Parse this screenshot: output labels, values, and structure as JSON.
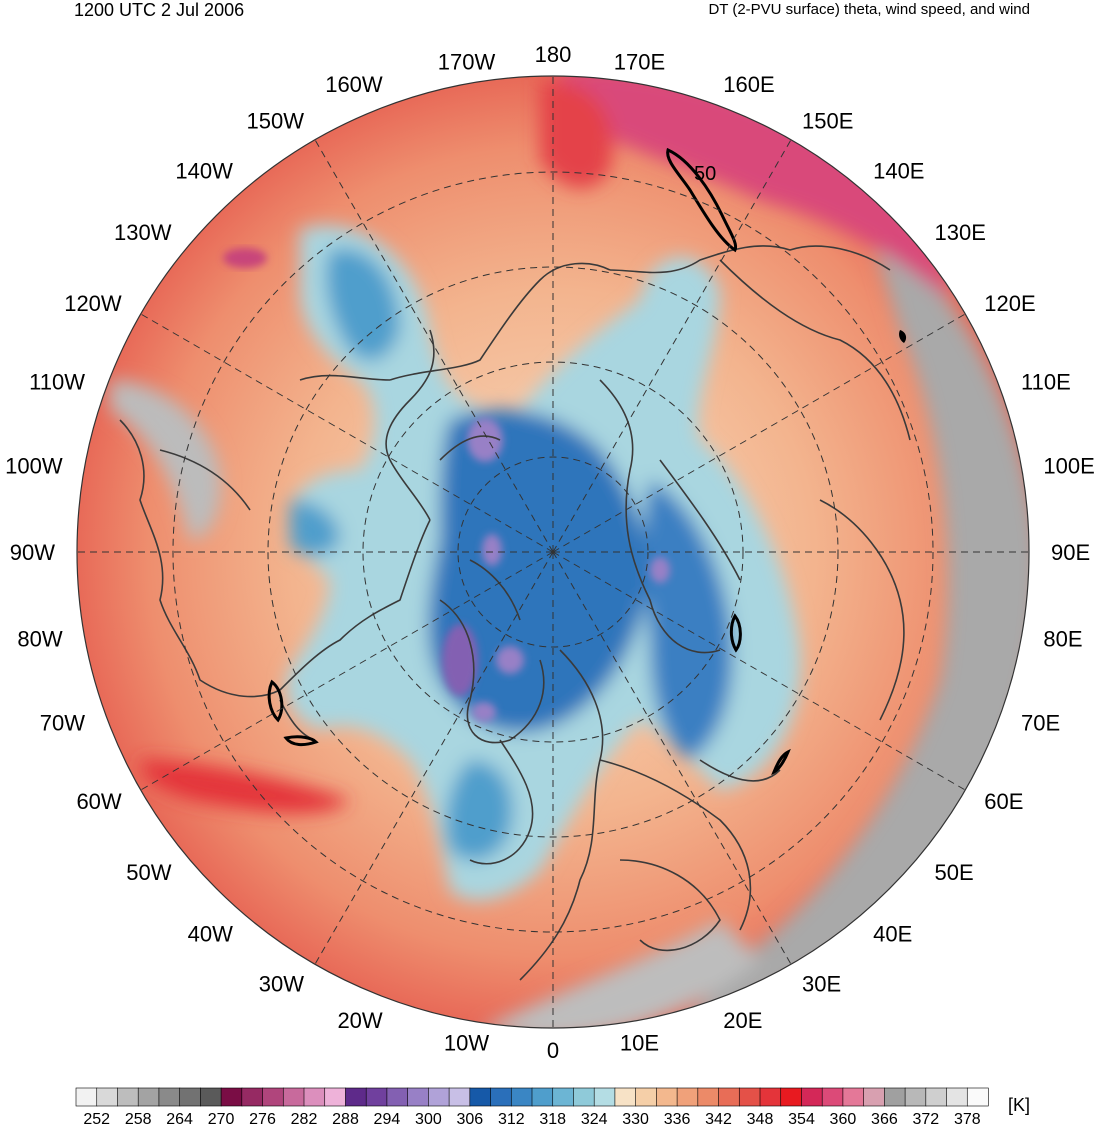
{
  "header": {
    "valid_time": "1200 UTC 2 Jul 2006",
    "title": "DT (2-PVU surface) theta, wind speed, and wind"
  },
  "longitude_labels": [
    "180",
    "170E",
    "160E",
    "150E",
    "140E",
    "130E",
    "120E",
    "110E",
    "100E",
    "90E",
    "80E",
    "70E",
    "60E",
    "50E",
    "40E",
    "30E",
    "20E",
    "10E",
    "0",
    "10W",
    "20W",
    "30W",
    "40W",
    "50W",
    "60W",
    "70W",
    "80W",
    "90W",
    "100W",
    "110W",
    "120W",
    "130W",
    "140W",
    "150W",
    "160W",
    "170W"
  ],
  "contour_label": "50",
  "colorbar": {
    "unit": "[K]",
    "tick_labels": [
      "252",
      "258",
      "264",
      "270",
      "276",
      "282",
      "288",
      "294",
      "300",
      "306",
      "312",
      "318",
      "324",
      "330",
      "336",
      "342",
      "348",
      "354",
      "360",
      "366",
      "372",
      "378"
    ],
    "colors": [
      "#f2f2f2",
      "#d9d9d9",
      "#bdbdbd",
      "#a3a3a3",
      "#8a8a8a",
      "#727272",
      "#5a5a5a",
      "#7a0d45",
      "#962a63",
      "#b0457c",
      "#c86a9c",
      "#dc8fbd",
      "#eeb2d9",
      "#5e2a8a",
      "#70409e",
      "#8360b2",
      "#9880c6",
      "#b0a2d8",
      "#c8bfe6",
      "#1659a8",
      "#2a6fba",
      "#3a86c4",
      "#4f9ecc",
      "#6cb5d4",
      "#8fcad9",
      "#b4dde4",
      "#f7e2c6",
      "#f5cfa8",
      "#f3b88e",
      "#f0a17a",
      "#ec8a68",
      "#e86d57",
      "#e45148",
      "#e4343a",
      "#e81a20",
      "#d42858",
      "#dc4a78",
      "#e47898",
      "#d8a0b0",
      "#a0a0a0",
      "#b8b8b8",
      "#cfcfcf",
      "#e4e4e4",
      "#fafafa"
    ]
  },
  "colors": {
    "warm_background": "#ee9a76",
    "cold_core": "#2b6cb6",
    "jet_red": "#e63a3c",
    "tropics_grey": "#9c9c9c",
    "coastline": "#3a3a3a"
  }
}
